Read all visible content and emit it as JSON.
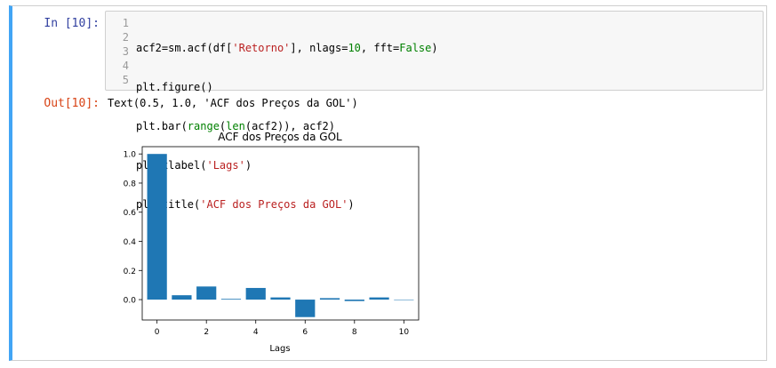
{
  "cell": {
    "in_prompt": "In [10]:",
    "out_prompt": "Out[10]:",
    "line_numbers": [
      "1",
      "2",
      "3",
      "4",
      "5"
    ],
    "code_lines": [
      "acf2=sm.acf(df['Retorno'], nlags=10, fft=False)",
      "plt.figure()",
      "plt.bar(range(len(acf2)), acf2)",
      "plt.xlabel('Lags')",
      "plt.title('ACF dos Preços da GOL')"
    ],
    "output_text": "Text(0.5, 1.0, 'ACF dos Preços da GOL')"
  },
  "chart_data": {
    "type": "bar",
    "title": "ACF dos Preços da GOL",
    "xlabel": "Lags",
    "ylabel": "",
    "categories": [
      0,
      1,
      2,
      3,
      4,
      5,
      6,
      7,
      8,
      9,
      10
    ],
    "values": [
      1.0,
      0.03,
      0.09,
      0.005,
      0.08,
      0.015,
      -0.12,
      0.01,
      -0.01,
      0.015,
      0.0
    ],
    "xticks": [
      "0",
      "2",
      "4",
      "6",
      "8",
      "10"
    ],
    "yticks": [
      "0.0",
      "0.2",
      "0.4",
      "0.6",
      "0.8",
      "1.0"
    ],
    "xlim": [
      -0.6,
      10.6
    ],
    "ylim": [
      -0.14,
      1.05
    ],
    "bar_color": "#1f77b4",
    "grid": false
  },
  "colors": {
    "cell_accent": "#42a5f5",
    "in_prompt": "#303f9f",
    "out_prompt": "#d84315"
  }
}
